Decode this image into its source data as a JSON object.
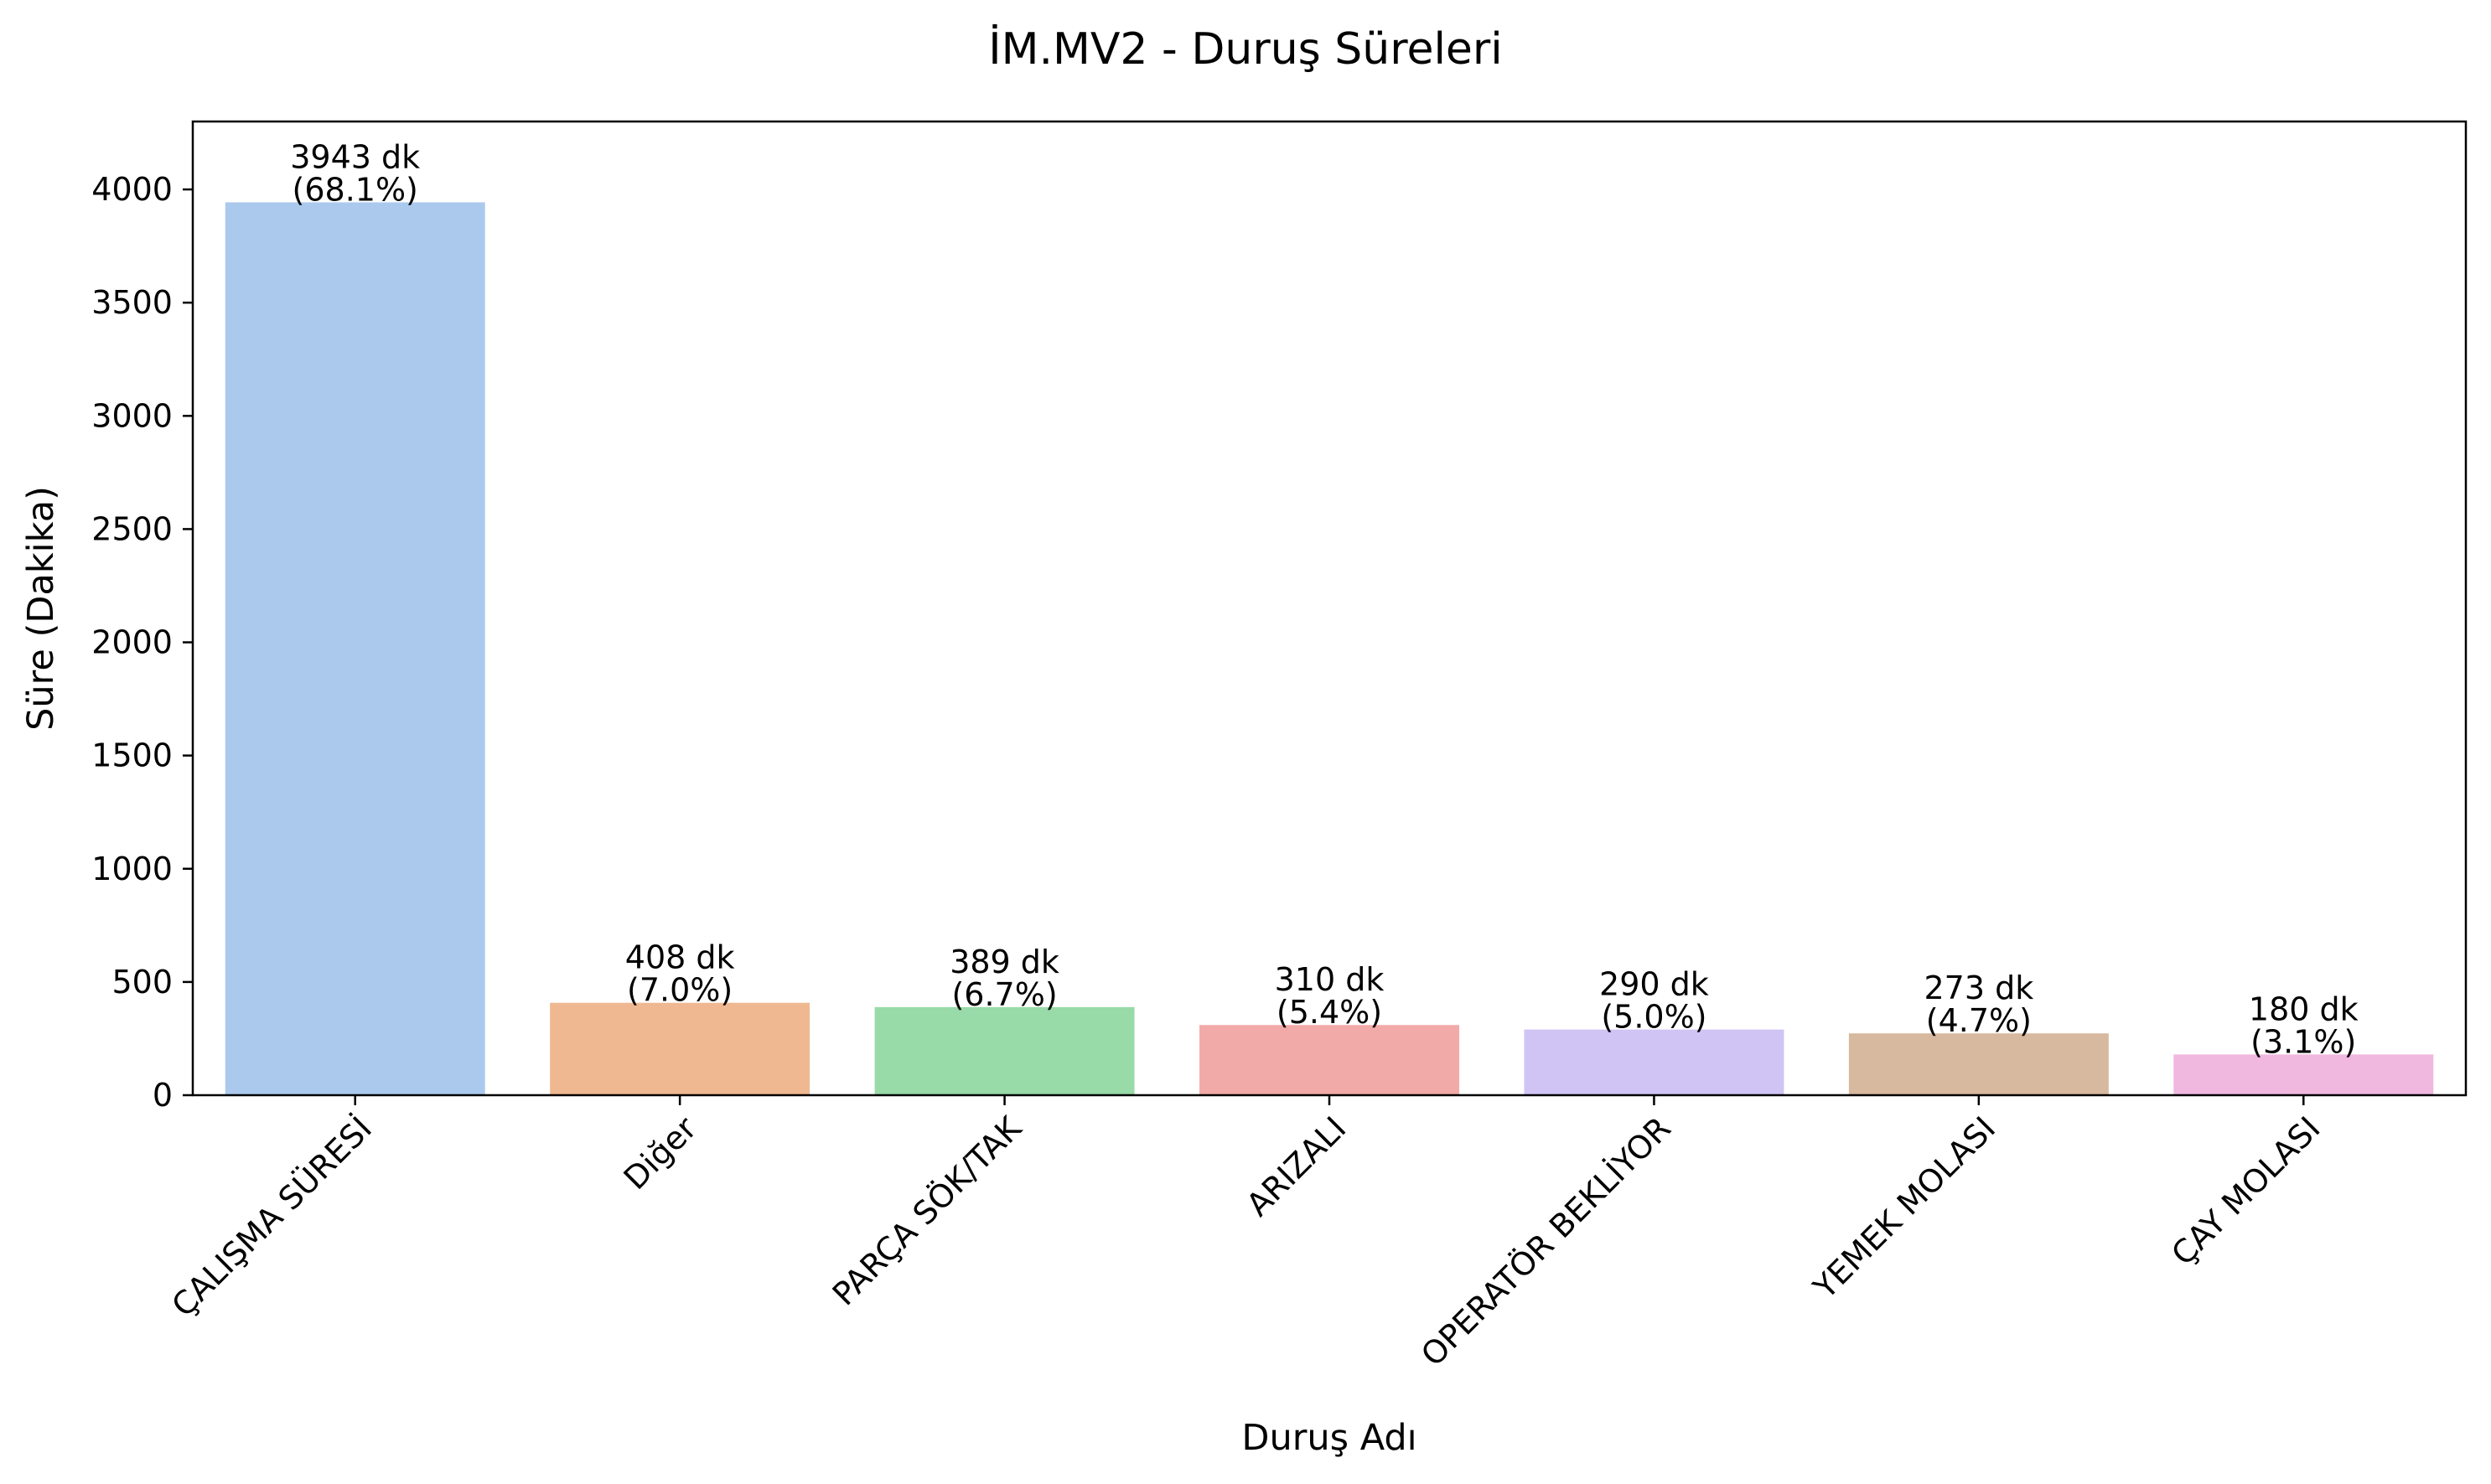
{
  "chart_data": {
    "type": "bar",
    "title": "İM.MV2 - Duruş Süreleri",
    "xlabel": "Duruş Adı",
    "ylabel": "Süre (Dakika)",
    "ylim": [
      0,
      4300
    ],
    "yticks": [
      0,
      500,
      1000,
      1500,
      2000,
      2500,
      3000,
      3500,
      4000
    ],
    "grid": false,
    "legend": "none",
    "categories": [
      "ÇALIŞMA SÜRESİ",
      "Diğer",
      "PARÇA SÖK/TAK",
      "ARIZALI",
      "OPERATÖR BEKLİYOR",
      "YEMEK MOLASI",
      "ÇAY MOLASI"
    ],
    "values": [
      3943,
      408,
      389,
      310,
      290,
      273,
      180
    ],
    "value_labels": [
      "3943 dk",
      "408 dk",
      "389 dk",
      "310 dk",
      "290 dk",
      "273 dk",
      "180 dk"
    ],
    "percent_labels": [
      "(68.1%)",
      "(7.0%)",
      "(6.7%)",
      "(5.4%)",
      "(5.0%)",
      "(4.7%)",
      "(3.1%)"
    ],
    "colors": [
      "#abc9ed",
      "#f0b890",
      "#98daa8",
      "#f2aaa8",
      "#d0c4f5",
      "#d6b99e",
      "#f0b7df"
    ]
  }
}
